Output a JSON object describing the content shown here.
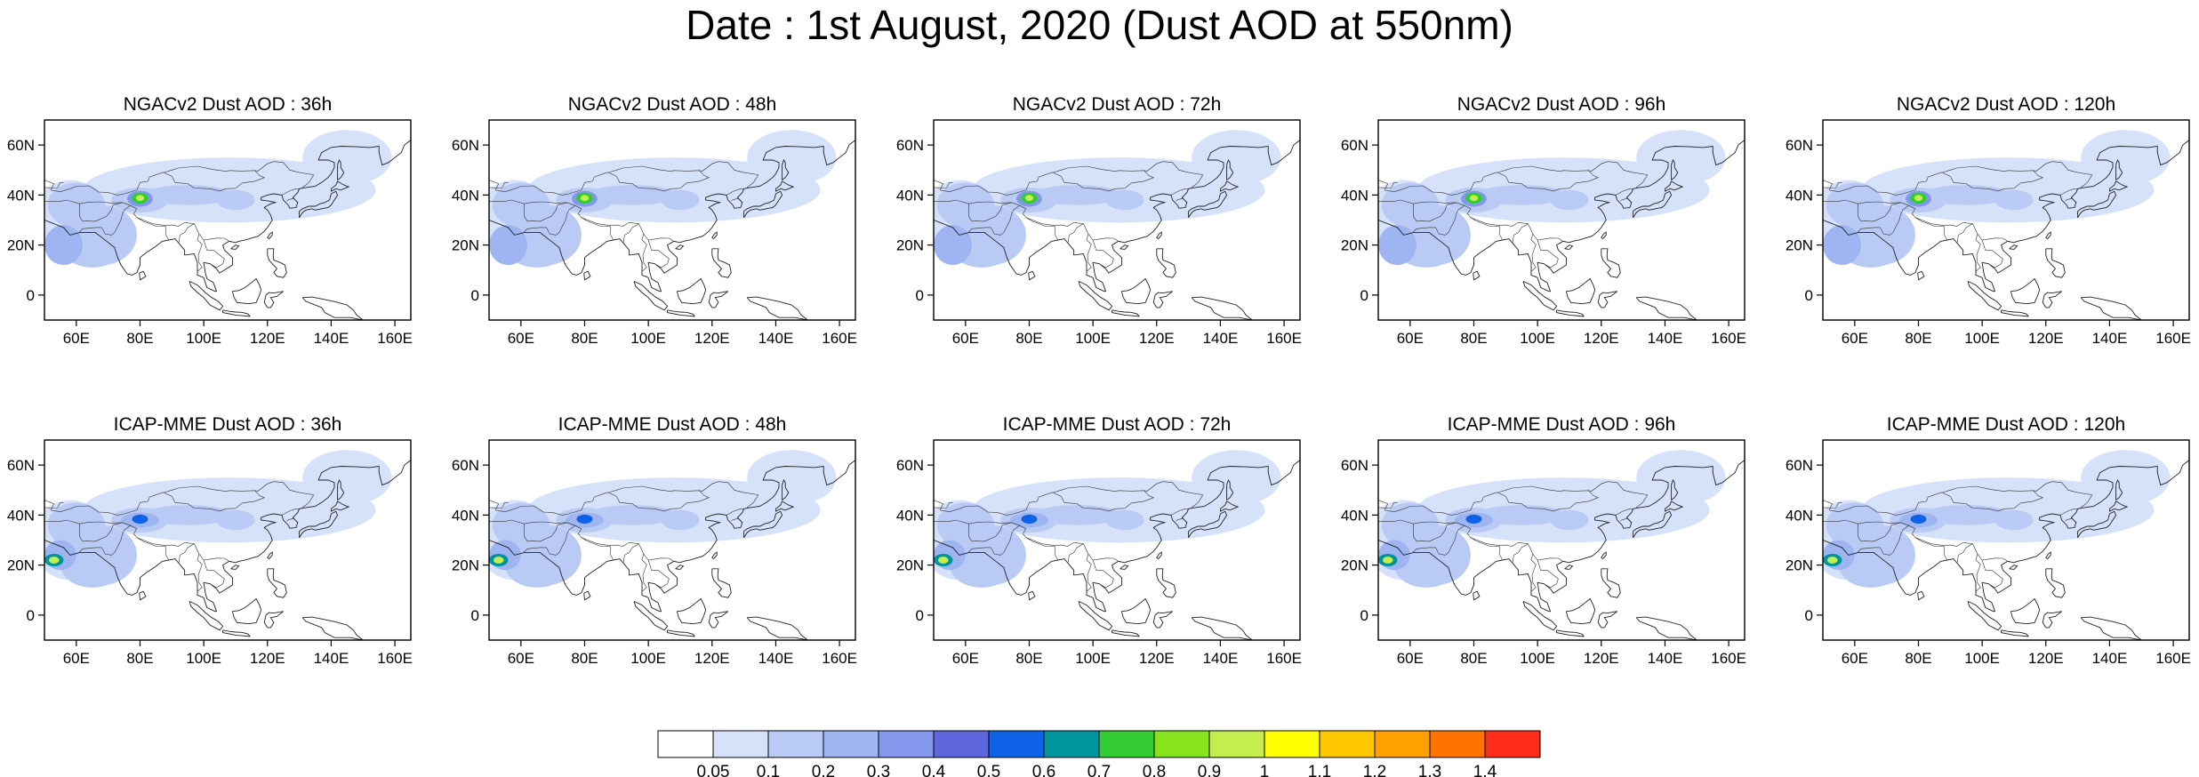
{
  "title": "Date : 1st August, 2020 (Dust AOD at 550nm)",
  "axes": {
    "x_ticks": [
      "60E",
      "80E",
      "100E",
      "120E",
      "140E",
      "160E"
    ],
    "x_tick_values": [
      60,
      80,
      100,
      120,
      140,
      160
    ],
    "y_ticks": [
      "60N",
      "40N",
      "20N",
      "0"
    ],
    "y_tick_values": [
      60,
      40,
      20,
      0
    ],
    "lon_range": [
      50,
      165
    ],
    "lat_range": [
      -10,
      70
    ]
  },
  "rows": [
    {
      "model": "NGACv2",
      "panels": [
        {
          "title": "NGACv2 Dust AOD : 36h"
        },
        {
          "title": "NGACv2 Dust AOD : 48h"
        },
        {
          "title": "NGACv2 Dust AOD : 72h"
        },
        {
          "title": "NGACv2 Dust AOD : 96h"
        },
        {
          "title": "NGACv2 Dust AOD : 120h"
        }
      ]
    },
    {
      "model": "ICAP-MME",
      "panels": [
        {
          "title": "ICAP-MME Dust AOD : 36h"
        },
        {
          "title": "ICAP-MME Dust AOD : 48h"
        },
        {
          "title": "ICAP-MME Dust AOD : 72h"
        },
        {
          "title": "ICAP-MME Dust AOD : 96h"
        },
        {
          "title": "ICAP-MME Dust AOD : 120h"
        }
      ]
    }
  ],
  "colorbar": {
    "labels": [
      "0.05",
      "0.1",
      "0.2",
      "0.3",
      "0.4",
      "0.5",
      "0.6",
      "0.7",
      "0.8",
      "0.9",
      "1",
      "1.1",
      "1.2",
      "1.3",
      "1.4"
    ],
    "colors": [
      "#ffffff",
      "#d6e2fa",
      "#b9cbf5",
      "#9eb5f1",
      "#8398ec",
      "#5e67de",
      "#0d62e8",
      "#00959e",
      "#33cc33",
      "#88e31c",
      "#c4ee4d",
      "#ffff00",
      "#ffc800",
      "#ff9f00",
      "#ff7400",
      "#ff2c1a"
    ]
  }
}
